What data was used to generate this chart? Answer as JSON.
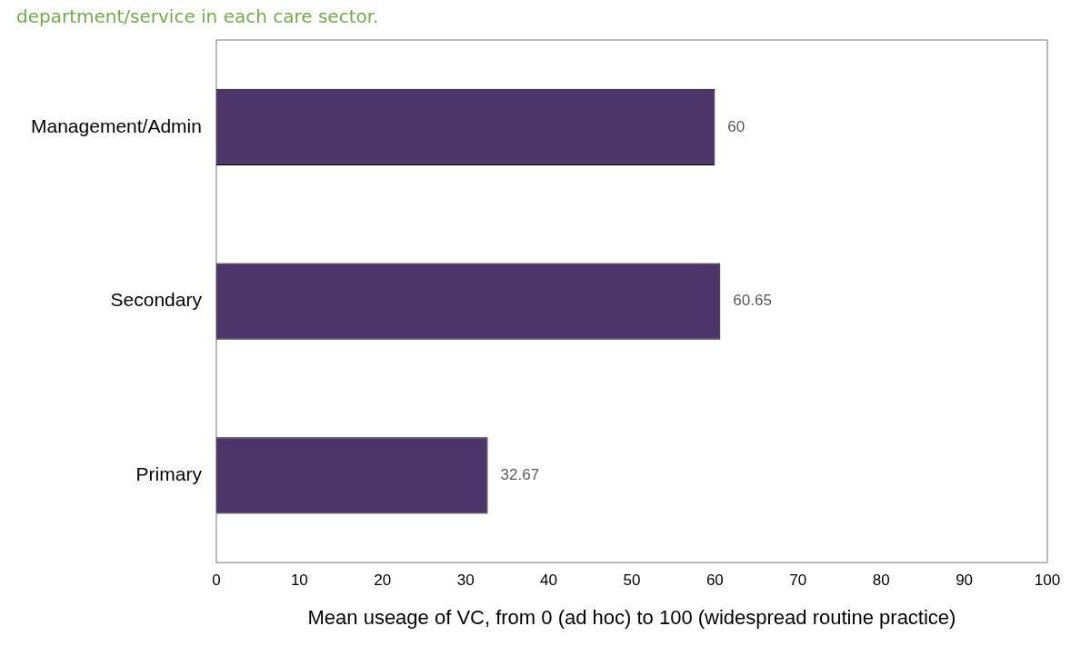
{
  "chart_data": {
    "type": "bar",
    "orientation": "horizontal",
    "title": "department/service in each care sector.",
    "xlabel": "Mean useage of VC, from 0 (ad hoc) to 100 (widespread routine practice)",
    "categories": [
      "Management/Admin",
      "Secondary",
      "Primary"
    ],
    "values": [
      60,
      60.65,
      32.67
    ],
    "color": "#4b3569",
    "data_labels": true,
    "xlim": [
      0,
      100
    ],
    "xticks": [
      0,
      10,
      20,
      30,
      40,
      50,
      60,
      70,
      80,
      90,
      100
    ],
    "grid": false,
    "legend": false
  }
}
